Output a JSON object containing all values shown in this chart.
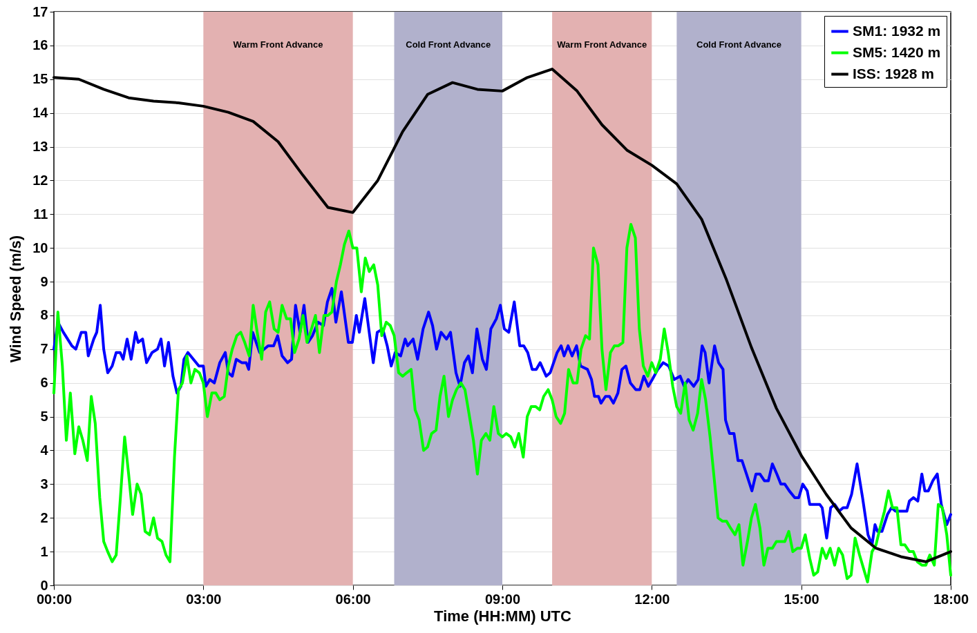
{
  "chart_data": {
    "type": "line",
    "xlabel": "Time (HH:MM) UTC",
    "ylabel": "Wind Speed (m/s)",
    "xlim": [
      0,
      18
    ],
    "xticks": [
      {
        "value": 0,
        "label": "00:00"
      },
      {
        "value": 3,
        "label": "03:00"
      },
      {
        "value": 6,
        "label": "06:00"
      },
      {
        "value": 9,
        "label": "09:00"
      },
      {
        "value": 12,
        "label": "12:00"
      },
      {
        "value": 15,
        "label": "15:00"
      },
      {
        "value": 18,
        "label": "18:00"
      }
    ],
    "ylim": [
      0,
      17
    ],
    "yticks": [
      0,
      1,
      2,
      3,
      4,
      5,
      6,
      7,
      8,
      9,
      10,
      11,
      12,
      13,
      14,
      15,
      16,
      17
    ],
    "grid": "y",
    "legend": "top right",
    "line_style": "solid",
    "bands": [
      {
        "axis": "x",
        "from": 3,
        "to": 6,
        "label": "Warm Front Advance",
        "color": "#e3b1b1"
      },
      {
        "axis": "x",
        "from": 6.83,
        "to": 9,
        "label": "Cold Front Advance",
        "color": "#b1b1cc"
      },
      {
        "axis": "x",
        "from": 10,
        "to": 12,
        "label": "Warm Front Advance",
        "color": "#e3b1b1"
      },
      {
        "axis": "x",
        "from": 12.5,
        "to": 15,
        "label": "Cold Front Advance",
        "color": "#b1b1cc"
      }
    ],
    "series": [
      {
        "name": "SM1: 1932 m",
        "color": "#0000ff",
        "x": [
          0,
          0.08,
          0.19,
          0.36,
          0.44,
          0.55,
          0.64,
          0.69,
          0.8,
          0.86,
          0.93,
          1,
          1.08,
          1.17,
          1.25,
          1.33,
          1.39,
          1.47,
          1.55,
          1.64,
          1.69,
          1.78,
          1.86,
          1.97,
          2.08,
          2.15,
          2.22,
          2.3,
          2.39,
          2.47,
          2.55,
          2.61,
          2.69,
          2.8,
          2.91,
          3,
          3.05,
          3.13,
          3.22,
          3.33,
          3.44,
          3.5,
          3.58,
          3.66,
          3.77,
          3.86,
          3.91,
          3.99,
          4.13,
          4.22,
          4.3,
          4.41,
          4.49,
          4.58,
          4.69,
          4.77,
          4.85,
          4.94,
          5.02,
          5.1,
          5.19,
          5.3,
          5.41,
          5.49,
          5.58,
          5.66,
          5.77,
          5.91,
          5.99,
          6.07,
          6.13,
          6.24,
          6.32,
          6.41,
          6.49,
          6.6,
          6.69,
          6.77,
          6.85,
          6.96,
          7.05,
          7.1,
          7.21,
          7.3,
          7.41,
          7.52,
          7.6,
          7.68,
          7.77,
          7.88,
          7.96,
          8.07,
          8.15,
          8.24,
          8.32,
          8.4,
          8.49,
          8.6,
          8.68,
          8.77,
          8.88,
          8.96,
          9.04,
          9.13,
          9.24,
          9.35,
          9.43,
          9.51,
          9.6,
          9.68,
          9.76,
          9.88,
          9.96,
          10.1,
          10.18,
          10.24,
          10.32,
          10.4,
          10.49,
          10.57,
          10.71,
          10.79,
          10.85,
          10.93,
          10.98,
          11.07,
          11.15,
          11.23,
          11.32,
          11.4,
          11.48,
          11.57,
          11.68,
          11.76,
          11.84,
          11.93,
          12.01,
          12.12,
          12.23,
          12.34,
          12.45,
          12.57,
          12.65,
          12.73,
          12.84,
          12.93,
          13.01,
          13.07,
          13.15,
          13.26,
          13.34,
          13.43,
          13.48,
          13.56,
          13.65,
          13.73,
          13.81,
          13.9,
          14.01,
          14.09,
          14.17,
          14.26,
          14.34,
          14.42,
          14.51,
          14.59,
          14.67,
          14.76,
          14.87,
          14.95,
          15.03,
          15.12,
          15.17,
          15.28,
          15.37,
          15.42,
          15.51,
          15.59,
          15.67,
          15.76,
          15.84,
          15.92,
          16.01,
          16.12,
          16.23,
          16.34,
          16.42,
          16.48,
          16.53,
          16.62,
          16.73,
          16.81,
          16.89,
          17,
          17.12,
          17.17,
          17.25,
          17.34,
          17.42,
          17.48,
          17.55,
          17.64,
          17.73,
          17.81,
          17.92,
          18
        ],
        "values": [
          7.0,
          7.8,
          7.5,
          7.1,
          7.0,
          7.5,
          7.5,
          6.8,
          7.3,
          7.5,
          8.3,
          7.0,
          6.3,
          6.5,
          6.9,
          6.9,
          6.7,
          7.3,
          6.7,
          7.5,
          7.2,
          7.3,
          6.6,
          6.9,
          7.0,
          7.3,
          6.5,
          7.2,
          6.2,
          5.7,
          5.9,
          6.7,
          6.9,
          6.7,
          6.5,
          6.5,
          5.9,
          6.1,
          6.0,
          6.6,
          6.9,
          6.3,
          6.2,
          6.7,
          6.6,
          6.6,
          6.4,
          7.5,
          6.9,
          7.0,
          7.1,
          7.1,
          7.4,
          6.8,
          6.6,
          6.7,
          8.3,
          7.5,
          8.3,
          7.2,
          7.4,
          7.8,
          7.7,
          8.4,
          8.8,
          7.8,
          8.7,
          7.2,
          7.2,
          8.0,
          7.5,
          8.5,
          7.6,
          6.6,
          7.5,
          7.6,
          7.1,
          6.5,
          6.9,
          6.8,
          7.3,
          7.1,
          7.3,
          6.7,
          7.6,
          8.1,
          7.7,
          7.0,
          7.5,
          7.3,
          7.5,
          6.3,
          5.9,
          6.6,
          6.8,
          6.3,
          7.6,
          6.7,
          6.4,
          7.6,
          7.9,
          8.3,
          7.6,
          7.5,
          8.4,
          7.1,
          7.1,
          6.9,
          6.4,
          6.4,
          6.6,
          6.2,
          6.3,
          6.9,
          7.1,
          6.8,
          7.1,
          6.8,
          7.1,
          6.5,
          6.4,
          6.1,
          5.6,
          5.6,
          5.4,
          5.6,
          5.6,
          5.4,
          5.7,
          6.4,
          6.5,
          6.0,
          5.8,
          5.8,
          6.2,
          5.9,
          6.1,
          6.4,
          6.6,
          6.5,
          6.1,
          6.2,
          5.9,
          6.1,
          5.9,
          6.1,
          7.1,
          6.9,
          6.0,
          7.1,
          6.6,
          6.4,
          4.9,
          4.5,
          4.5,
          3.7,
          3.7,
          3.3,
          2.8,
          3.3,
          3.3,
          3.1,
          3.1,
          3.6,
          3.3,
          3.0,
          3.0,
          2.8,
          2.6,
          2.6,
          3.0,
          2.8,
          2.4,
          2.4,
          2.4,
          2.3,
          1.4,
          2.3,
          2.4,
          2.2,
          2.3,
          2.3,
          2.7,
          3.6,
          2.6,
          1.5,
          1.2,
          1.8,
          1.6,
          1.6,
          2.1,
          2.3,
          2.2,
          2.2,
          2.2,
          2.5,
          2.6,
          2.5,
          3.3,
          2.8,
          2.8,
          3.1,
          3.3,
          2.4,
          1.8,
          2.1
        ]
      },
      {
        "name": "SM5: 1420 m",
        "color": "#00ff00",
        "x": [
          0,
          0.08,
          0.17,
          0.25,
          0.33,
          0.42,
          0.5,
          0.58,
          0.67,
          0.75,
          0.83,
          0.92,
          1,
          1.08,
          1.17,
          1.25,
          1.33,
          1.42,
          1.5,
          1.58,
          1.67,
          1.75,
          1.83,
          1.92,
          2,
          2.08,
          2.17,
          2.25,
          2.33,
          2.42,
          2.5,
          2.58,
          2.67,
          2.75,
          2.83,
          2.92,
          3,
          3.08,
          3.17,
          3.25,
          3.33,
          3.42,
          3.5,
          3.58,
          3.67,
          3.75,
          3.83,
          3.92,
          4,
          4.08,
          4.17,
          4.25,
          4.33,
          4.42,
          4.5,
          4.58,
          4.67,
          4.75,
          4.83,
          4.92,
          5,
          5.08,
          5.17,
          5.25,
          5.33,
          5.42,
          5.5,
          5.58,
          5.67,
          5.75,
          5.83,
          5.92,
          6,
          6.08,
          6.17,
          6.25,
          6.33,
          6.42,
          6.5,
          6.58,
          6.67,
          6.75,
          6.83,
          6.92,
          7,
          7.08,
          7.17,
          7.25,
          7.33,
          7.42,
          7.5,
          7.58,
          7.67,
          7.75,
          7.83,
          7.92,
          8,
          8.08,
          8.17,
          8.25,
          8.33,
          8.42,
          8.5,
          8.58,
          8.67,
          8.75,
          8.83,
          8.92,
          9,
          9.08,
          9.17,
          9.25,
          9.33,
          9.42,
          9.5,
          9.58,
          9.67,
          9.75,
          9.83,
          9.92,
          10,
          10.08,
          10.17,
          10.25,
          10.33,
          10.42,
          10.5,
          10.58,
          10.67,
          10.75,
          10.83,
          10.92,
          11,
          11.08,
          11.17,
          11.25,
          11.33,
          11.42,
          11.5,
          11.58,
          11.67,
          11.75,
          11.83,
          11.92,
          12,
          12.08,
          12.17,
          12.25,
          12.33,
          12.42,
          12.5,
          12.58,
          12.67,
          12.75,
          12.83,
          12.92,
          13,
          13.08,
          13.17,
          13.25,
          13.33,
          13.42,
          13.5,
          13.58,
          13.67,
          13.75,
          13.83,
          13.92,
          14,
          14.08,
          14.17,
          14.25,
          14.33,
          14.42,
          14.5,
          14.58,
          14.67,
          14.75,
          14.83,
          14.92,
          15,
          15.08,
          15.17,
          15.25,
          15.33,
          15.42,
          15.5,
          15.58,
          15.67,
          15.75,
          15.83,
          15.92,
          16,
          16.08,
          16.17,
          16.25,
          16.33,
          16.42,
          16.5,
          16.58,
          16.67,
          16.75,
          16.83,
          16.92,
          17,
          17.08,
          17.17,
          17.25,
          17.33,
          17.42,
          17.5,
          17.58,
          17.67,
          17.75,
          17.83,
          17.92,
          18
        ],
        "values": [
          5.7,
          8.1,
          6.5,
          4.3,
          5.7,
          3.9,
          4.7,
          4.3,
          3.7,
          5.6,
          4.8,
          2.6,
          1.3,
          1.0,
          0.7,
          0.9,
          2.5,
          4.4,
          3.3,
          2.1,
          3.0,
          2.7,
          1.6,
          1.5,
          2.0,
          1.4,
          1.3,
          0.9,
          0.7,
          3.8,
          5.8,
          6.0,
          6.8,
          6.0,
          6.4,
          6.3,
          6.0,
          5.0,
          5.7,
          5.7,
          5.5,
          5.6,
          6.5,
          7.0,
          7.4,
          7.5,
          7.2,
          6.8,
          8.3,
          7.5,
          6.7,
          8.1,
          8.4,
          7.6,
          7.5,
          8.3,
          7.9,
          7.9,
          6.9,
          7.3,
          8.0,
          7.2,
          7.6,
          8.0,
          6.9,
          8.0,
          8.0,
          8.1,
          9.0,
          9.5,
          10.1,
          10.5,
          10.0,
          10.0,
          8.7,
          9.7,
          9.3,
          9.5,
          8.9,
          7.4,
          7.8,
          7.7,
          7.4,
          6.3,
          6.2,
          6.3,
          6.4,
          5.2,
          4.9,
          4.0,
          4.1,
          4.5,
          4.6,
          5.6,
          6.2,
          5.0,
          5.5,
          5.8,
          6.0,
          5.8,
          5.1,
          4.3,
          3.3,
          4.3,
          4.5,
          4.3,
          5.3,
          4.5,
          4.4,
          4.5,
          4.4,
          4.1,
          4.5,
          3.8,
          5.0,
          5.3,
          5.3,
          5.2,
          5.6,
          5.8,
          5.5,
          5.0,
          4.8,
          5.1,
          6.4,
          6.0,
          6.0,
          7.0,
          7.4,
          7.3,
          10.0,
          9.5,
          7.0,
          5.8,
          6.9,
          7.1,
          7.1,
          7.2,
          10.0,
          10.7,
          10.3,
          7.6,
          6.5,
          6.2,
          6.6,
          6.3,
          6.7,
          7.6,
          6.9,
          5.9,
          5.3,
          5.1,
          6.0,
          4.9,
          4.6,
          5.1,
          6.1,
          5.5,
          4.4,
          3.2,
          2.0,
          1.9,
          1.9,
          1.7,
          1.5,
          1.8,
          0.6,
          1.3,
          2.0,
          2.4,
          1.7,
          0.6,
          1.1,
          1.1,
          1.3,
          1.3,
          1.3,
          1.6,
          1.0,
          1.1,
          1.1,
          1.5,
          0.8,
          0.3,
          0.4,
          1.1,
          0.8,
          1.1,
          0.6,
          1.1,
          0.9,
          0.2,
          0.3,
          1.4,
          0.9,
          0.5,
          0.1,
          1.0,
          1.2,
          1.7,
          2.2,
          2.8,
          2.3,
          2.3,
          1.2,
          1.2,
          1.0,
          1.0,
          0.7,
          0.6,
          0.6,
          0.9,
          0.6,
          2.4,
          2.3,
          1.5,
          0.3
        ]
      },
      {
        "name": "ISS: 1928 m",
        "color": "#000000",
        "x": [
          0,
          0.5,
          1,
          1.5,
          2,
          2.5,
          3,
          3.5,
          4,
          4.5,
          5,
          5.5,
          6,
          6.5,
          7,
          7.5,
          8,
          8.5,
          9,
          9.5,
          10,
          10.5,
          11,
          11.5,
          12,
          12.5,
          13,
          13.5,
          14,
          14.5,
          15,
          15.5,
          16,
          16.5,
          17,
          17.5,
          18
        ],
        "values": [
          15.05,
          15.0,
          14.7,
          14.45,
          14.35,
          14.3,
          14.2,
          14.02,
          13.75,
          13.15,
          12.15,
          11.2,
          11.05,
          12.0,
          13.45,
          14.55,
          14.9,
          14.7,
          14.65,
          15.05,
          15.3,
          14.65,
          13.65,
          12.9,
          12.45,
          11.9,
          10.85,
          9.05,
          7.05,
          5.25,
          3.85,
          2.7,
          1.7,
          1.1,
          0.85,
          0.7,
          1.0
        ]
      }
    ]
  }
}
